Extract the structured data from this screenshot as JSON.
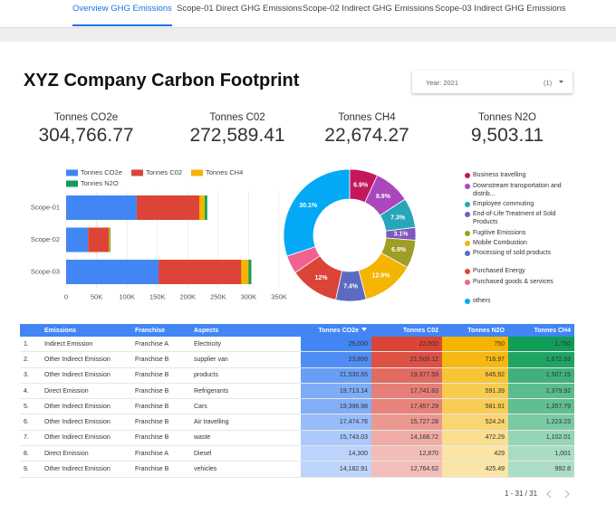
{
  "tabs": [
    "Overview GHG Emissions",
    "Scope-01 Direct GHG Emissions",
    "Scope-02 Indirect GHG Emissions",
    "Scope-03 Indirect GHG Emissions"
  ],
  "active_tab": 0,
  "header": {
    "title": "XYZ Company Carbon Footprint"
  },
  "filter": {
    "label": "Year: 2021",
    "count": "(1)"
  },
  "kpis": [
    {
      "label": "Tonnes CO2e",
      "value": "304,766.77"
    },
    {
      "label": "Tonnes C02",
      "value": "272,589.41"
    },
    {
      "label": "Tonnes CH4",
      "value": "22,674.27"
    },
    {
      "label": "Tonnes N2O",
      "value": "9,503.11"
    }
  ],
  "chart_data": [
    {
      "type": "bar",
      "orientation": "horizontal",
      "stacked": true,
      "categories": [
        "Scope-01",
        "Scope-02",
        "Scope-03"
      ],
      "series": [
        {
          "name": "Tonnes CO2e",
          "color": "#4285f4",
          "values": [
            116000,
            36000,
            152000
          ]
        },
        {
          "name": "Tonnes C02",
          "color": "#db4437",
          "values": [
            103000,
            34000,
            136000
          ]
        },
        {
          "name": "Tonnes CH4",
          "color": "#f4b400",
          "values": [
            9000,
            2000,
            12000
          ]
        },
        {
          "name": "Tonnes N2O",
          "color": "#0f9d58",
          "values": [
            4000,
            1000,
            4500
          ]
        }
      ],
      "xlim": [
        0,
        350000
      ],
      "xticks": [
        0,
        {
          "value": 50000,
          "label": "50K"
        },
        {
          "value": 100000,
          "label": "100K"
        },
        {
          "value": 150000,
          "label": "150K"
        },
        {
          "value": 200000,
          "label": "200K"
        },
        {
          "value": 250000,
          "label": "250K"
        },
        {
          "value": 300000,
          "label": "300K"
        },
        {
          "value": 350000,
          "label": "350K"
        }
      ],
      "grid": true,
      "legend": "top"
    },
    {
      "type": "pie",
      "donut": true,
      "categories": [
        "Business travelling",
        "Downstream transportation and distrib...",
        "Employee commuting",
        "End-of-Life Treatment of Sold Products",
        "Fugitive Emissions",
        "Mobile Combustion",
        "Processing of sold products",
        "Purchased Energy",
        "Purchased goods & services",
        "others"
      ],
      "values": [
        6.9,
        8.9,
        7.3,
        3.1,
        6.9,
        12.9,
        7.4,
        12,
        4.5,
        30.1
      ],
      "value_labels": [
        "6.9%",
        "8.9%",
        "7.3%",
        "3.1%",
        "6.9%",
        "12.9%",
        "7.4%",
        "12%",
        null,
        "30.1%"
      ],
      "colors": [
        "#c2185b",
        "#ab47bc",
        "#26a6b8",
        "#7e57c2",
        "#9e9d24",
        "#f4b400",
        "#5c6bc0",
        "#db4437",
        "#f06292",
        "#03a9f4"
      ],
      "legend": "right"
    }
  ],
  "table": {
    "columns": [
      "Emissions",
      "Franchise",
      "Aspects",
      "Tonnes CO2e",
      "Tonnes C02",
      "Tonnes N2O",
      "Tonnes CH4"
    ],
    "sort_column": 3,
    "heat_colors": [
      null,
      null,
      null,
      "#4285f4",
      "#db4437",
      "#f4b400",
      "#0f9d58"
    ],
    "rows": [
      [
        "1.",
        "Indirect Emission",
        "Franchise A",
        "Electricity",
        "25,000",
        "22,500",
        "750",
        "1,750"
      ],
      [
        "2.",
        "Other Indirect Emission",
        "Franchise B",
        "supplier van",
        "23,899",
        "21,509.12",
        "716.97",
        "1,672.93"
      ],
      [
        "3.",
        "Other Indirect Emission",
        "Franchise B",
        "products",
        "21,530.65",
        "19,377.59",
        "645.92",
        "1,507.15"
      ],
      [
        "4.",
        "Direct Emission",
        "Franchise B",
        "Refrigerants",
        "19,713.14",
        "17,741.83",
        "591.39",
        "1,379.92"
      ],
      [
        "5.",
        "Other Indirect Emission",
        "Franchise B",
        "Cars",
        "19,396.98",
        "17,457.29",
        "581.91",
        "1,357.79"
      ],
      [
        "6.",
        "Other Indirect Emission",
        "Franchise B",
        "Air travelling",
        "17,474.76",
        "15,727.28",
        "524.24",
        "1,223.23"
      ],
      [
        "7.",
        "Other Indirect Emission",
        "Franchise B",
        "waste",
        "15,743.03",
        "14,168.72",
        "472.29",
        "1,102.01"
      ],
      [
        "8.",
        "Direct Emission",
        "Franchise A",
        "Diesel",
        "14,300",
        "12,870",
        "429",
        "1,001"
      ],
      [
        "9.",
        "Other Indirect Emission",
        "Franchise B",
        "vehicles",
        "14,182.91",
        "12,764.62",
        "425.49",
        "992.8"
      ]
    ],
    "pagination": "1 - 31 / 31"
  }
}
